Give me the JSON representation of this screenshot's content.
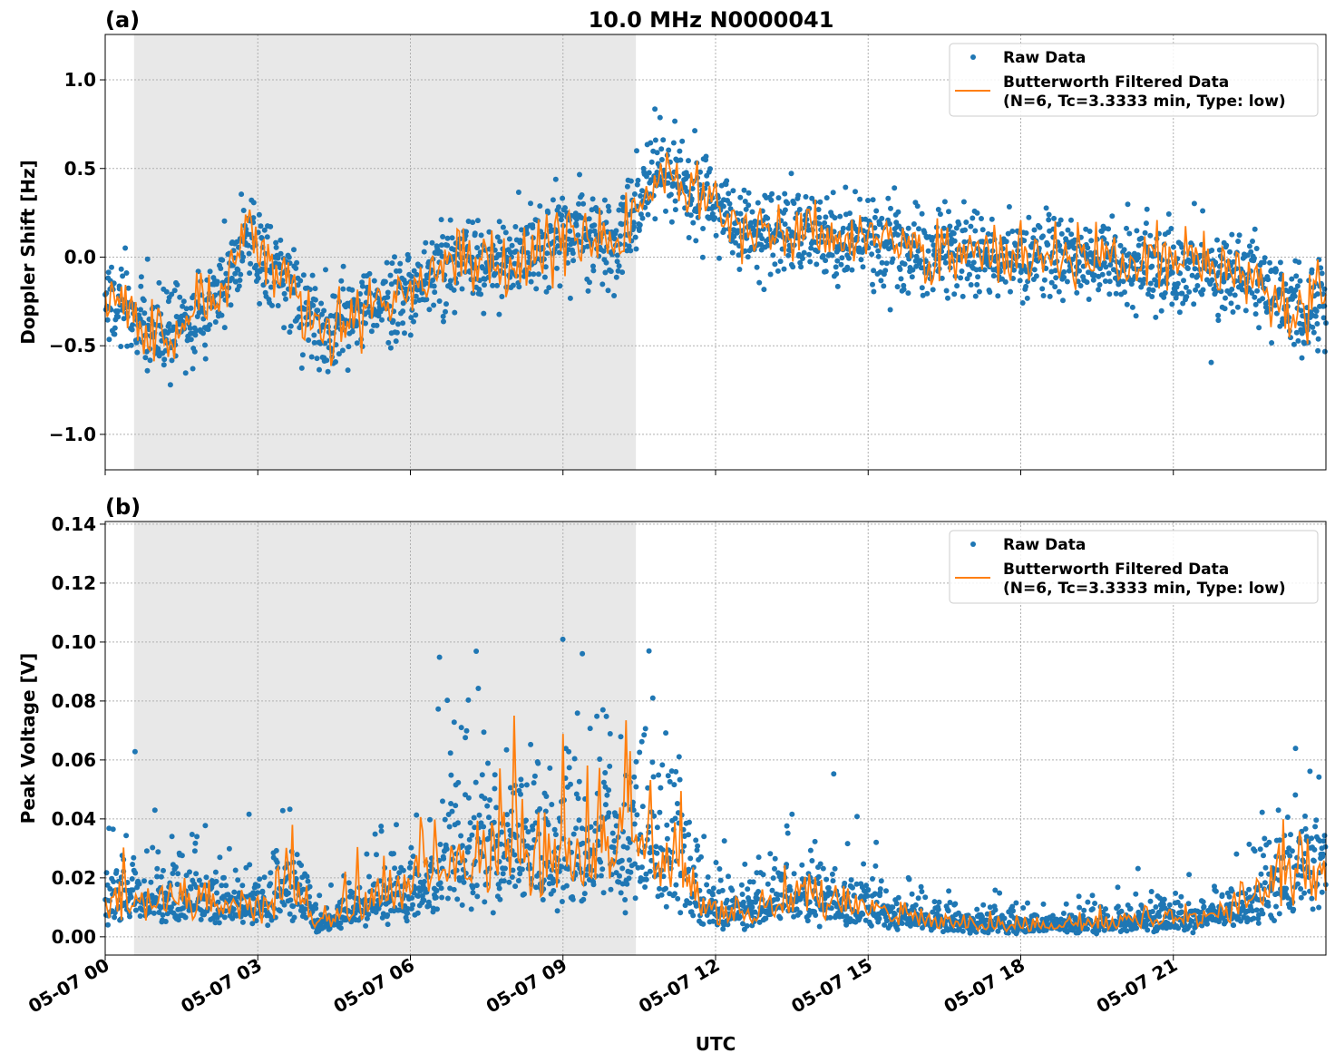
{
  "title": "10.0 MHz N0000041",
  "chart_data": [
    {
      "type": "scatter",
      "panel_label": "(a)",
      "ylabel": "Doppler Shift [Hz]",
      "xlabel": "",
      "ylim": [
        -1.2,
        1.256
      ],
      "yticks": [
        -1.0,
        -0.5,
        0.0,
        0.5,
        1.0
      ],
      "ytick_labels": [
        "−1.0",
        "−0.5",
        "0.0",
        "0.5",
        "1.0"
      ],
      "grid": true,
      "legend": {
        "placement": "top-right",
        "entries": [
          "Raw Data",
          "Butterworth Filtered Data",
          "(N=6, Tc=3.3333 min, Type: low)"
        ]
      },
      "shaded_span": [
        "05-07 00:34",
        "05-07 10:26"
      ],
      "trend_time": [
        "00:00",
        "01:00",
        "02:00",
        "02:45",
        "03:30",
        "04:20",
        "05:00",
        "06:00",
        "07:00",
        "08:00",
        "09:00",
        "10:00",
        "10:30",
        "11:00",
        "11:40",
        "12:30",
        "13:30",
        "14:30",
        "15:30",
        "16:30",
        "17:30",
        "18:30",
        "19:30",
        "20:30",
        "21:30",
        "22:30",
        "23:20",
        "24:00"
      ],
      "trend_value": [
        -0.2,
        -0.45,
        -0.3,
        0.1,
        -0.1,
        -0.45,
        -0.3,
        -0.2,
        0.0,
        -0.05,
        0.15,
        0.05,
        0.3,
        0.5,
        0.35,
        0.15,
        0.15,
        0.12,
        0.05,
        0.05,
        0.0,
        0.0,
        -0.02,
        -0.05,
        -0.05,
        -0.1,
        -0.3,
        -0.2
      ],
      "spread": 0.2,
      "series": [
        {
          "name": "Raw Data",
          "color": "#1f77b4"
        },
        {
          "name": "Butterworth Filtered Data",
          "color": "#ff7f0e"
        }
      ]
    },
    {
      "type": "scatter",
      "panel_label": "(b)",
      "ylabel": "Peak Voltage [V]",
      "xlabel": "UTC",
      "ylim": [
        -0.0062,
        0.1409
      ],
      "yticks": [
        0.0,
        0.02,
        0.04,
        0.06,
        0.08,
        0.1,
        0.12,
        0.14
      ],
      "ytick_labels": [
        "0.00",
        "0.02",
        "0.04",
        "0.06",
        "0.08",
        "0.10",
        "0.12",
        "0.14"
      ],
      "grid": true,
      "legend": {
        "placement": "top-right",
        "entries": [
          "Raw Data",
          "Butterworth Filtered Data",
          "(N=6, Tc=3.3333 min, Type: low)"
        ]
      },
      "shaded_span": [
        "05-07 00:34",
        "05-07 10:26"
      ],
      "trend_time": [
        "00:00",
        "01:00",
        "02:00",
        "03:00",
        "03:40",
        "04:10",
        "05:00",
        "06:00",
        "07:00",
        "08:00",
        "09:00",
        "10:00",
        "11:00",
        "11:50",
        "12:30",
        "13:30",
        "14:30",
        "15:30",
        "16:30",
        "17:30",
        "18:30",
        "19:30",
        "20:30",
        "21:30",
        "22:30",
        "23:30",
        "24:00"
      ],
      "trend_value": [
        0.012,
        0.013,
        0.012,
        0.011,
        0.018,
        0.004,
        0.01,
        0.018,
        0.028,
        0.03,
        0.025,
        0.035,
        0.03,
        0.01,
        0.008,
        0.014,
        0.012,
        0.008,
        0.005,
        0.004,
        0.004,
        0.004,
        0.006,
        0.006,
        0.012,
        0.022,
        0.025
      ],
      "spread": 0.45,
      "series": [
        {
          "name": "Raw Data",
          "color": "#1f77b4"
        },
        {
          "name": "Butterworth Filtered Data",
          "color": "#ff7f0e"
        }
      ]
    }
  ],
  "xaxis": {
    "xlim": [
      "05-07 00:00",
      "05-08 00:00"
    ],
    "tick_labels": [
      "05-07 00",
      "05-07 03",
      "05-07 06",
      "05-07 09",
      "05-07 12",
      "05-07 15",
      "05-07 18",
      "05-07 21"
    ]
  }
}
